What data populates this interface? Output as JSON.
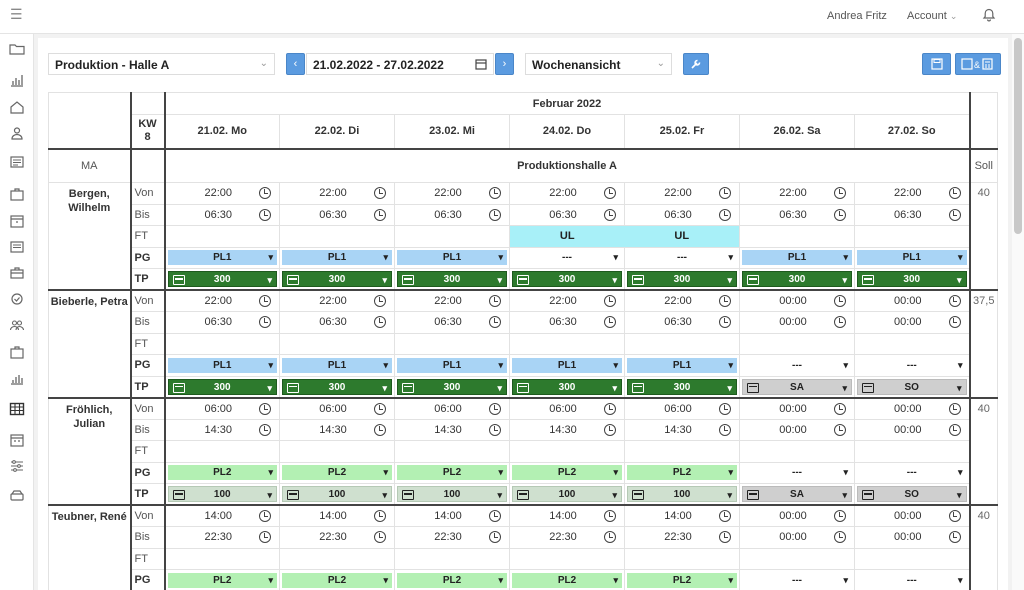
{
  "header": {
    "user_name": "Andrea Fritz",
    "account_label": "Account"
  },
  "toolbar": {
    "location": "Produktion - Halle A",
    "date_range": "21.02.2022 - 27.02.2022",
    "view": "Wochenansicht"
  },
  "grid": {
    "month": "Februar 2022",
    "kw": "KW 8",
    "days": [
      "21.02. Mo",
      "22.02. Di",
      "23.02. Mi",
      "24.02. Do",
      "25.02. Fr",
      "26.02. Sa",
      "27.02. So"
    ],
    "ma_label": "MA",
    "hall": "Produktionshalle A",
    "soll_label": "Soll",
    "row_labels": {
      "von": "Von",
      "bis": "Bis",
      "ft": "FT",
      "pg": "PG",
      "tp": "TP"
    },
    "employees": [
      {
        "name": "Bergen, Wilhelm",
        "soll": "40",
        "von": [
          "22:00",
          "22:00",
          "22:00",
          "22:00",
          "22:00",
          "22:00",
          "22:00"
        ],
        "bis": [
          "06:30",
          "06:30",
          "06:30",
          "06:30",
          "06:30",
          "06:30",
          "06:30"
        ],
        "ft": [
          "",
          "",
          "",
          "UL",
          "UL",
          "",
          ""
        ],
        "pg": [
          "PL1",
          "PL1",
          "PL1",
          "---",
          "---",
          "PL1",
          "PL1"
        ],
        "tp": [
          "300",
          "300",
          "300",
          "300",
          "300",
          "300",
          "300"
        ]
      },
      {
        "name": "Bieberle, Petra",
        "soll": "37,5",
        "von": [
          "22:00",
          "22:00",
          "22:00",
          "22:00",
          "22:00",
          "00:00",
          "00:00"
        ],
        "bis": [
          "06:30",
          "06:30",
          "06:30",
          "06:30",
          "06:30",
          "00:00",
          "00:00"
        ],
        "ft": [
          "",
          "",
          "",
          "",
          "",
          "",
          ""
        ],
        "pg": [
          "PL1",
          "PL1",
          "PL1",
          "PL1",
          "PL1",
          "---",
          "---"
        ],
        "tp": [
          "300",
          "300",
          "300",
          "300",
          "300",
          "SA",
          "SO"
        ]
      },
      {
        "name": "Fröhlich, Julian",
        "soll": "40",
        "von": [
          "06:00",
          "06:00",
          "06:00",
          "06:00",
          "06:00",
          "00:00",
          "00:00"
        ],
        "bis": [
          "14:30",
          "14:30",
          "14:30",
          "14:30",
          "14:30",
          "00:00",
          "00:00"
        ],
        "ft": [
          "",
          "",
          "",
          "",
          "",
          "",
          ""
        ],
        "pg": [
          "PL2",
          "PL2",
          "PL2",
          "PL2",
          "PL2",
          "---",
          "---"
        ],
        "tp": [
          "100",
          "100",
          "100",
          "100",
          "100",
          "SA",
          "SO"
        ]
      },
      {
        "name": "Teubner, René",
        "soll": "40",
        "von": [
          "14:00",
          "14:00",
          "14:00",
          "14:00",
          "14:00",
          "00:00",
          "00:00"
        ],
        "bis": [
          "22:30",
          "22:30",
          "22:30",
          "22:30",
          "22:30",
          "00:00",
          "00:00"
        ],
        "ft": [
          "",
          "",
          "",
          "",
          "",
          "",
          ""
        ],
        "pg": [
          "PL2",
          "PL2",
          "PL2",
          "PL2",
          "PL2",
          "---",
          "---"
        ]
      }
    ]
  }
}
